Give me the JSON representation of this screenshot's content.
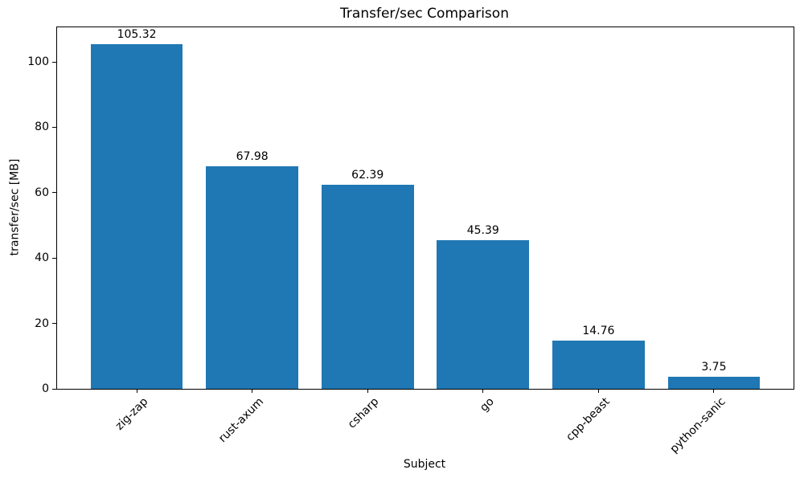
{
  "chart_data": {
    "type": "bar",
    "title": "Transfer/sec Comparison",
    "xlabel": "Subject",
    "ylabel": "transfer/sec [MB]",
    "categories": [
      "zig-zap",
      "rust-axum",
      "csharp",
      "go",
      "cpp-beast",
      "python-sanic"
    ],
    "values": [
      105.32,
      67.98,
      62.39,
      45.39,
      14.76,
      3.75
    ],
    "value_labels": [
      "105.32",
      "67.98",
      "62.39",
      "45.39",
      "14.76",
      "3.75"
    ],
    "yticks": [
      0,
      20,
      40,
      60,
      80,
      100
    ],
    "ylim": [
      0,
      110.59
    ],
    "bar_color": "#1f77b4",
    "axis_color": "#000000",
    "x_tick_rotation_deg": 45,
    "grid": false,
    "legend_position": "none"
  }
}
